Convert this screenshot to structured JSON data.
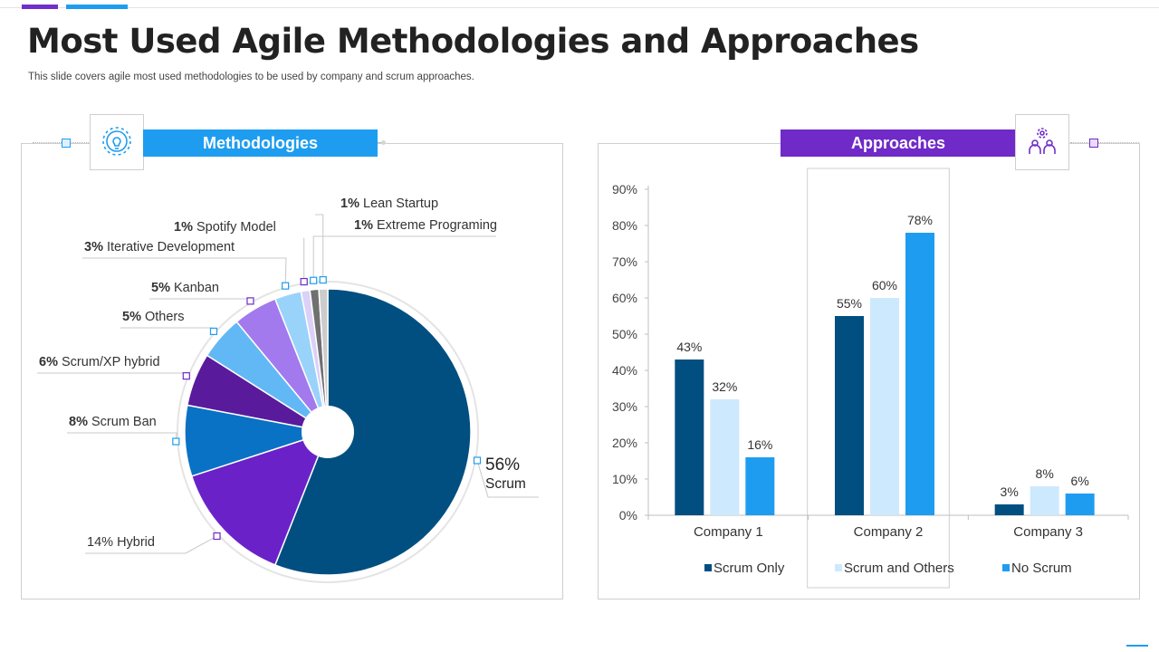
{
  "page": {
    "title": "Most Used Agile Methodologies and Approaches",
    "subtitle": "This slide covers agile most used methodologies to be used by company and scrum approaches."
  },
  "methodologies": {
    "header": "Methodologies",
    "icon": "lightbulb-gear-icon",
    "color": "#1e9df0"
  },
  "approaches": {
    "header": "Approaches",
    "icon": "team-gear-icon",
    "color": "#6f2ac8"
  },
  "chart_data": [
    {
      "type": "pie",
      "slices": [
        {
          "value": 56,
          "pct": "56%",
          "name": "Scrum",
          "color": "#004f80"
        },
        {
          "value": 14,
          "pct": "14%",
          "name": "Hybrid",
          "color": "#6a22c8"
        },
        {
          "value": 8,
          "pct": "8%",
          "name": "Scrum Ban",
          "color": "#0a72c4"
        },
        {
          "value": 6,
          "pct": "6%",
          "name": "Scrum/XP hybrid",
          "color": "#5a1a9c"
        },
        {
          "value": 5,
          "pct": "5%",
          "name": "Others",
          "color": "#62b8f5"
        },
        {
          "value": 5,
          "pct": "5%",
          "name": "Kanban",
          "color": "#a27aee"
        },
        {
          "value": 3,
          "pct": "3%",
          "name": "Iterative  Development",
          "color": "#9ad3fa"
        },
        {
          "value": 1,
          "pct": "1%",
          "name": "Spotify Model",
          "color": "#dcd0f8"
        },
        {
          "value": 1,
          "pct": "1%",
          "name": "Extreme Programing",
          "color": "#707070"
        },
        {
          "value": 1,
          "pct": "1%",
          "name": "Lean Startup",
          "color": "#cccccc"
        }
      ]
    },
    {
      "type": "bar",
      "categories": [
        "Company 1",
        "Company 2",
        "Company 3"
      ],
      "series": [
        {
          "name": "Scrum Only",
          "values": [
            43,
            55,
            3
          ],
          "color": "#004f80"
        },
        {
          "name": "Scrum and Others",
          "values": [
            32,
            60,
            8
          ],
          "color": "#cde9fd"
        },
        {
          "name": "No Scrum",
          "values": [
            16,
            78,
            6
          ],
          "color": "#1e9df0"
        }
      ],
      "ylim": [
        0,
        90
      ],
      "yticks": [
        "0%",
        "10%",
        "20%",
        "30%",
        "40%",
        "50%",
        "60%",
        "70%",
        "80%",
        "90%"
      ],
      "value_format": "%",
      "legend": "bottom"
    }
  ]
}
